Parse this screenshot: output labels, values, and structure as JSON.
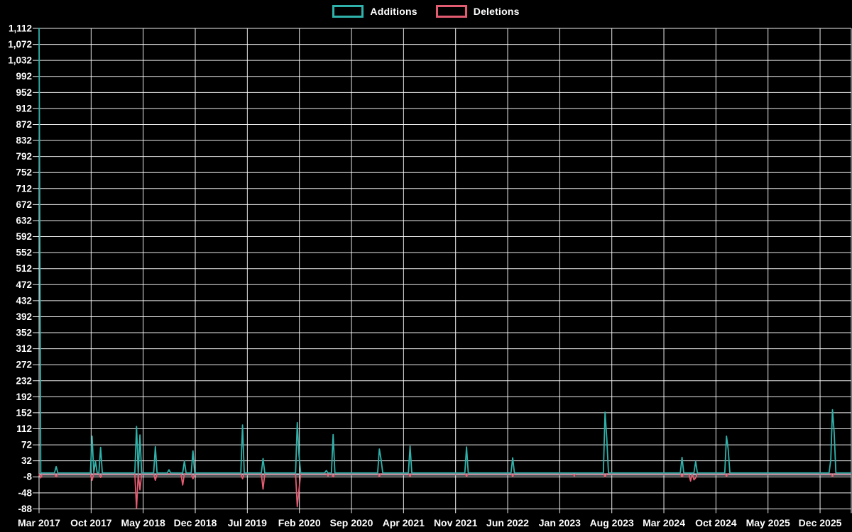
{
  "colors": {
    "background": "#000000",
    "grid": "#ffffff",
    "text": "#ffffff",
    "additions": "#2fb2ab",
    "deletions": "#e45c72",
    "zero_baseline": "#9fb8c2"
  },
  "legend": {
    "items": [
      {
        "label": "Additions",
        "color": "#2fb2ab"
      },
      {
        "label": "Deletions",
        "color": "#e45c72"
      }
    ],
    "position": "top-center"
  },
  "chart_data": {
    "type": "line",
    "title": "",
    "xlabel": "",
    "ylabel": "",
    "x_axis_labels": [
      "Mar 2017",
      "Oct 2017",
      "May 2018",
      "Dec 2018",
      "Jul 2019",
      "Feb 2020",
      "Sep 2020",
      "Apr 2021",
      "Nov 2021",
      "Jun 2022",
      "Jan 2023",
      "Aug 2023",
      "Mar 2024",
      "Oct 2024",
      "May 2025",
      "Dec 2025"
    ],
    "y_ticks": [
      1112,
      1072,
      1032,
      992,
      952,
      912,
      872,
      832,
      792,
      752,
      712,
      672,
      632,
      592,
      552,
      512,
      472,
      432,
      392,
      352,
      312,
      272,
      232,
      192,
      152,
      112,
      72,
      32,
      -8,
      -48,
      -88
    ],
    "ylim": [
      -88,
      1112
    ],
    "grid": true,
    "weeks_total": 476,
    "weeks_per_x_label": 30.45,
    "series": [
      {
        "name": "Additions",
        "color": "#2fb2ab",
        "baseline": 0,
        "spikes": [
          [
            0,
            1112
          ],
          [
            10,
            16
          ],
          [
            31,
            92
          ],
          [
            33,
            29
          ],
          [
            36,
            64
          ],
          [
            57,
            116
          ],
          [
            59,
            95
          ],
          [
            68,
            66
          ],
          [
            76,
            8
          ],
          [
            85,
            30
          ],
          [
            90,
            55
          ],
          [
            119,
            120
          ],
          [
            131,
            36
          ],
          [
            151,
            126
          ],
          [
            152,
            45
          ],
          [
            168,
            6
          ],
          [
            172,
            96
          ],
          [
            199,
            60
          ],
          [
            200,
            34
          ],
          [
            217,
            67
          ],
          [
            250,
            65
          ],
          [
            277,
            38
          ],
          [
            331,
            152
          ],
          [
            332,
            87
          ],
          [
            376,
            39
          ],
          [
            384,
            29
          ],
          [
            402,
            92
          ],
          [
            403,
            60
          ],
          [
            463,
            33
          ],
          [
            464,
            158
          ],
          [
            465,
            101
          ]
        ]
      },
      {
        "name": "Deletions",
        "color": "#e45c72",
        "baseline": 0,
        "spikes": [
          [
            1,
            -10
          ],
          [
            10,
            -8
          ],
          [
            31,
            -16
          ],
          [
            36,
            -9
          ],
          [
            57,
            -86
          ],
          [
            59,
            -40
          ],
          [
            68,
            -16
          ],
          [
            84,
            -28
          ],
          [
            90,
            -12
          ],
          [
            119,
            -12
          ],
          [
            131,
            -38
          ],
          [
            151,
            -82
          ],
          [
            152,
            -40
          ],
          [
            169,
            -5
          ],
          [
            172,
            -8
          ],
          [
            199,
            -6
          ],
          [
            217,
            -6
          ],
          [
            250,
            -6
          ],
          [
            277,
            -6
          ],
          [
            313,
            -5
          ],
          [
            331,
            -7
          ],
          [
            376,
            -8
          ],
          [
            381,
            -18
          ],
          [
            383,
            -15
          ],
          [
            384,
            -10
          ],
          [
            402,
            -6
          ],
          [
            464,
            -6
          ]
        ]
      }
    ]
  }
}
